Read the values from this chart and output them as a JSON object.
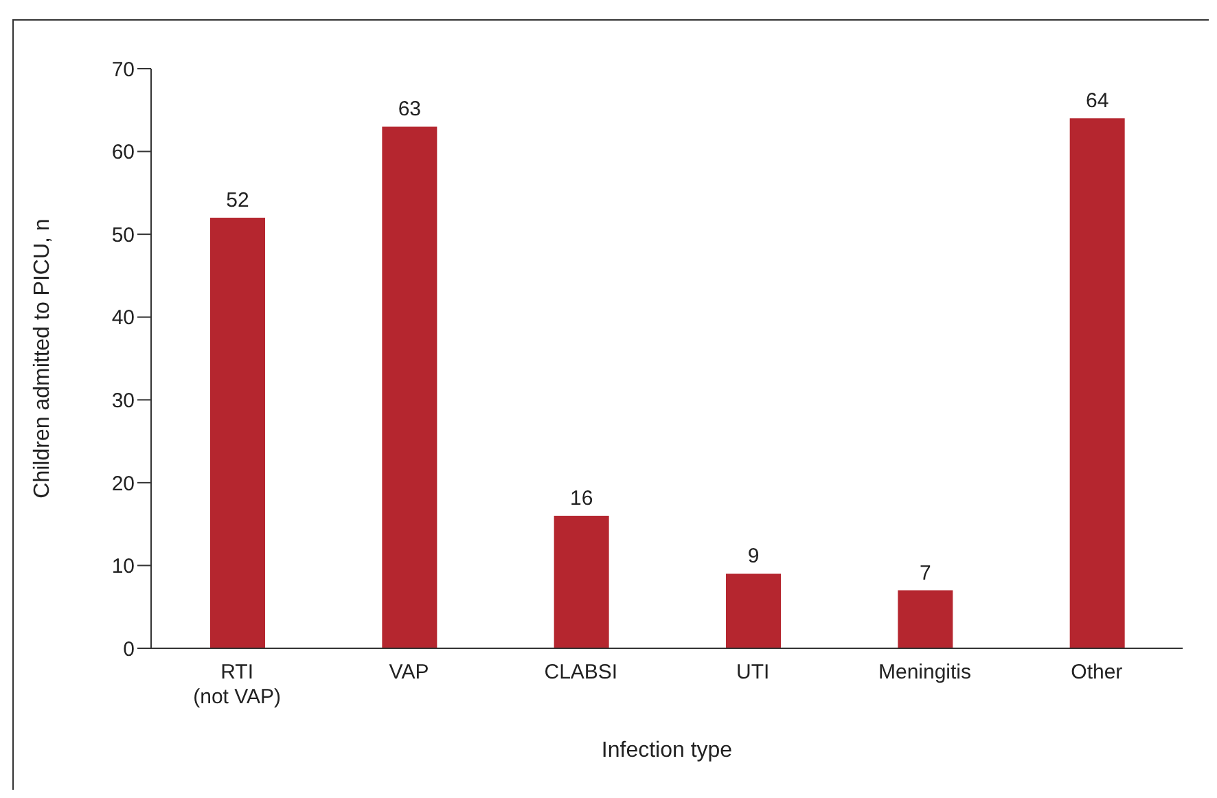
{
  "chart_data": {
    "type": "bar",
    "xlabel": "Infection type",
    "ylabel": "Children admitted to PICU, n",
    "categories": [
      "RTI\n(not VAP)",
      "VAP",
      "CLABSI",
      "UTI",
      "Meningitis",
      "Other"
    ],
    "values": [
      52,
      63,
      16,
      9,
      7,
      64
    ],
    "color": "#b5262f",
    "data_labels": true,
    "ylim": [
      0,
      70
    ],
    "yticks": [
      0,
      10,
      20,
      30,
      40,
      50,
      60,
      70
    ],
    "grid": false,
    "legend": false
  }
}
